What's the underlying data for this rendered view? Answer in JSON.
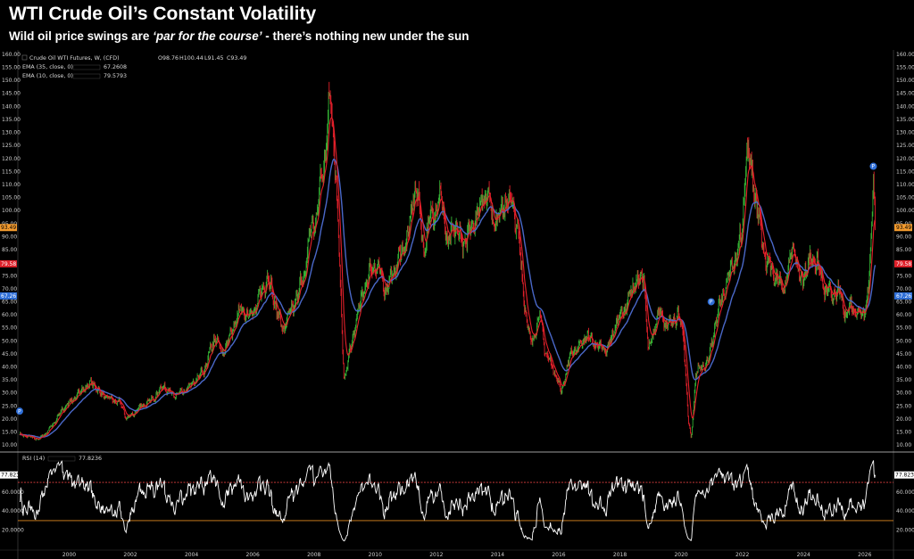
{
  "title": "WTI Crude Oil’s Constant Volatility",
  "subtitle_prefix": "Wild oil price swings are ",
  "subtitle_em": "‘par for the course’",
  "subtitle_suffix": " - there’s nothing new under the sun",
  "colors": {
    "up": "#35b335",
    "down": "#e0202a",
    "ema10": "#e8202a",
    "ema35": "#4a68c8",
    "rsi": "#ffffff",
    "overbought": "#e04040",
    "oversold": "#e08a20",
    "accent_blue": "#2f6fd8",
    "accent_orange": "#f29a2e",
    "accent_red": "#e0202a"
  },
  "legend": {
    "series_name": "Crude Oil WTI Futures, W, (CFD)",
    "ohlc_o": "O98.76",
    "ohlc_h": "H100.44",
    "ohlc_l": "L91.45",
    "ohlc_c": "C93.49",
    "ema35_label": "EMA (35, close, 0)",
    "ema35_value": "67.2608",
    "ema10_label": "EMA (10, close, 0)",
    "ema10_value": "79.5793",
    "rsi_label": "RSI (14)",
    "rsi_value": "77.8236"
  },
  "price_tags": {
    "last": "93.49",
    "ema10": "79.58",
    "ema35": "67.26"
  },
  "rsi_tag": "77.8236",
  "markers": [
    {
      "year": 1998.4,
      "value": 23,
      "label": "P"
    },
    {
      "year": 2021.0,
      "value": 65,
      "label": "P"
    },
    {
      "year": 2026.3,
      "value": 117,
      "label": "P"
    }
  ],
  "chart_data": [
    {
      "type": "line",
      "title": "Crude Oil WTI Futures, W, (CFD)",
      "y_ticks": [
        10,
        15,
        20,
        25,
        30,
        35,
        40,
        45,
        50,
        55,
        60,
        65,
        70,
        75,
        80,
        85,
        90,
        95,
        100,
        105,
        110,
        115,
        120,
        125,
        130,
        135,
        140,
        145,
        150,
        155,
        160
      ],
      "ylim": [
        8,
        161
      ],
      "xlim": [
        1998.4,
        2026.9
      ],
      "x_tick_labels": [
        "2000",
        "2002",
        "2004",
        "2006",
        "2008",
        "2010",
        "2012",
        "2014",
        "2016",
        "2018",
        "2020",
        "2022",
        "2024",
        "2026"
      ],
      "anchors": [
        [
          1998.4,
          14
        ],
        [
          1998.8,
          13
        ],
        [
          1999.0,
          12
        ],
        [
          1999.3,
          15
        ],
        [
          1999.6,
          20
        ],
        [
          1999.9,
          25
        ],
        [
          2000.2,
          28
        ],
        [
          2000.5,
          32
        ],
        [
          2000.8,
          34
        ],
        [
          2001.0,
          30
        ],
        [
          2001.3,
          28
        ],
        [
          2001.7,
          26
        ],
        [
          2001.9,
          20
        ],
        [
          2002.2,
          23
        ],
        [
          2002.5,
          26
        ],
        [
          2002.8,
          28
        ],
        [
          2003.1,
          33
        ],
        [
          2003.4,
          29
        ],
        [
          2003.7,
          30
        ],
        [
          2004.0,
          33
        ],
        [
          2004.4,
          38
        ],
        [
          2004.8,
          52
        ],
        [
          2005.0,
          45
        ],
        [
          2005.3,
          52
        ],
        [
          2005.6,
          62
        ],
        [
          2005.9,
          60
        ],
        [
          2006.1,
          62
        ],
        [
          2006.5,
          75
        ],
        [
          2006.8,
          62
        ],
        [
          2007.0,
          54
        ],
        [
          2007.4,
          65
        ],
        [
          2007.7,
          75
        ],
        [
          2007.9,
          92
        ],
        [
          2008.1,
          98
        ],
        [
          2008.4,
          125
        ],
        [
          2008.55,
          145
        ],
        [
          2008.75,
          110
        ],
        [
          2008.9,
          65
        ],
        [
          2009.0,
          35
        ],
        [
          2009.1,
          40
        ],
        [
          2009.4,
          58
        ],
        [
          2009.7,
          72
        ],
        [
          2010.0,
          80
        ],
        [
          2010.4,
          70
        ],
        [
          2010.8,
          82
        ],
        [
          2011.1,
          90
        ],
        [
          2011.35,
          112
        ],
        [
          2011.6,
          85
        ],
        [
          2011.9,
          100
        ],
        [
          2012.2,
          105
        ],
        [
          2012.4,
          85
        ],
        [
          2012.6,
          95
        ],
        [
          2012.9,
          87
        ],
        [
          2013.2,
          95
        ],
        [
          2013.5,
          103
        ],
        [
          2013.7,
          108
        ],
        [
          2013.9,
          95
        ],
        [
          2014.2,
          102
        ],
        [
          2014.5,
          104
        ],
        [
          2014.7,
          90
        ],
        [
          2014.9,
          65
        ],
        [
          2015.1,
          48
        ],
        [
          2015.4,
          60
        ],
        [
          2015.6,
          45
        ],
        [
          2015.9,
          38
        ],
        [
          2016.1,
          30
        ],
        [
          2016.4,
          45
        ],
        [
          2016.7,
          48
        ],
        [
          2016.9,
          52
        ],
        [
          2017.3,
          48
        ],
        [
          2017.6,
          46
        ],
        [
          2017.9,
          57
        ],
        [
          2018.2,
          63
        ],
        [
          2018.5,
          72
        ],
        [
          2018.8,
          75
        ],
        [
          2018.95,
          45
        ],
        [
          2019.3,
          62
        ],
        [
          2019.6,
          55
        ],
        [
          2019.9,
          60
        ],
        [
          2020.1,
          52
        ],
        [
          2020.25,
          20
        ],
        [
          2020.35,
          12
        ],
        [
          2020.5,
          38
        ],
        [
          2020.9,
          42
        ],
        [
          2021.2,
          60
        ],
        [
          2021.5,
          72
        ],
        [
          2021.8,
          82
        ],
        [
          2022.0,
          90
        ],
        [
          2022.15,
          123
        ],
        [
          2022.4,
          110
        ],
        [
          2022.6,
          92
        ],
        [
          2022.8,
          80
        ],
        [
          2023.1,
          75
        ],
        [
          2023.4,
          70
        ],
        [
          2023.7,
          88
        ],
        [
          2023.9,
          72
        ],
        [
          2024.2,
          80
        ],
        [
          2024.4,
          82
        ],
        [
          2024.7,
          70
        ],
        [
          2024.9,
          68
        ],
        [
          2025.2,
          68
        ],
        [
          2025.4,
          60
        ],
        [
          2025.6,
          64
        ],
        [
          2025.8,
          60
        ],
        [
          2026.0,
          62
        ],
        [
          2026.15,
          70
        ],
        [
          2026.25,
          95
        ],
        [
          2026.3,
          116
        ],
        [
          2026.38,
          93.49
        ]
      ]
    },
    {
      "type": "line",
      "title": "RSI (14)",
      "ylim": [
        0,
        100
      ],
      "y_tick_values": [
        20,
        40,
        60
      ],
      "y_tick_labels": [
        "20.0000",
        "40.0000",
        "60.0000"
      ],
      "overbought": 70,
      "oversold": 30,
      "last_value": 77.8236
    }
  ]
}
